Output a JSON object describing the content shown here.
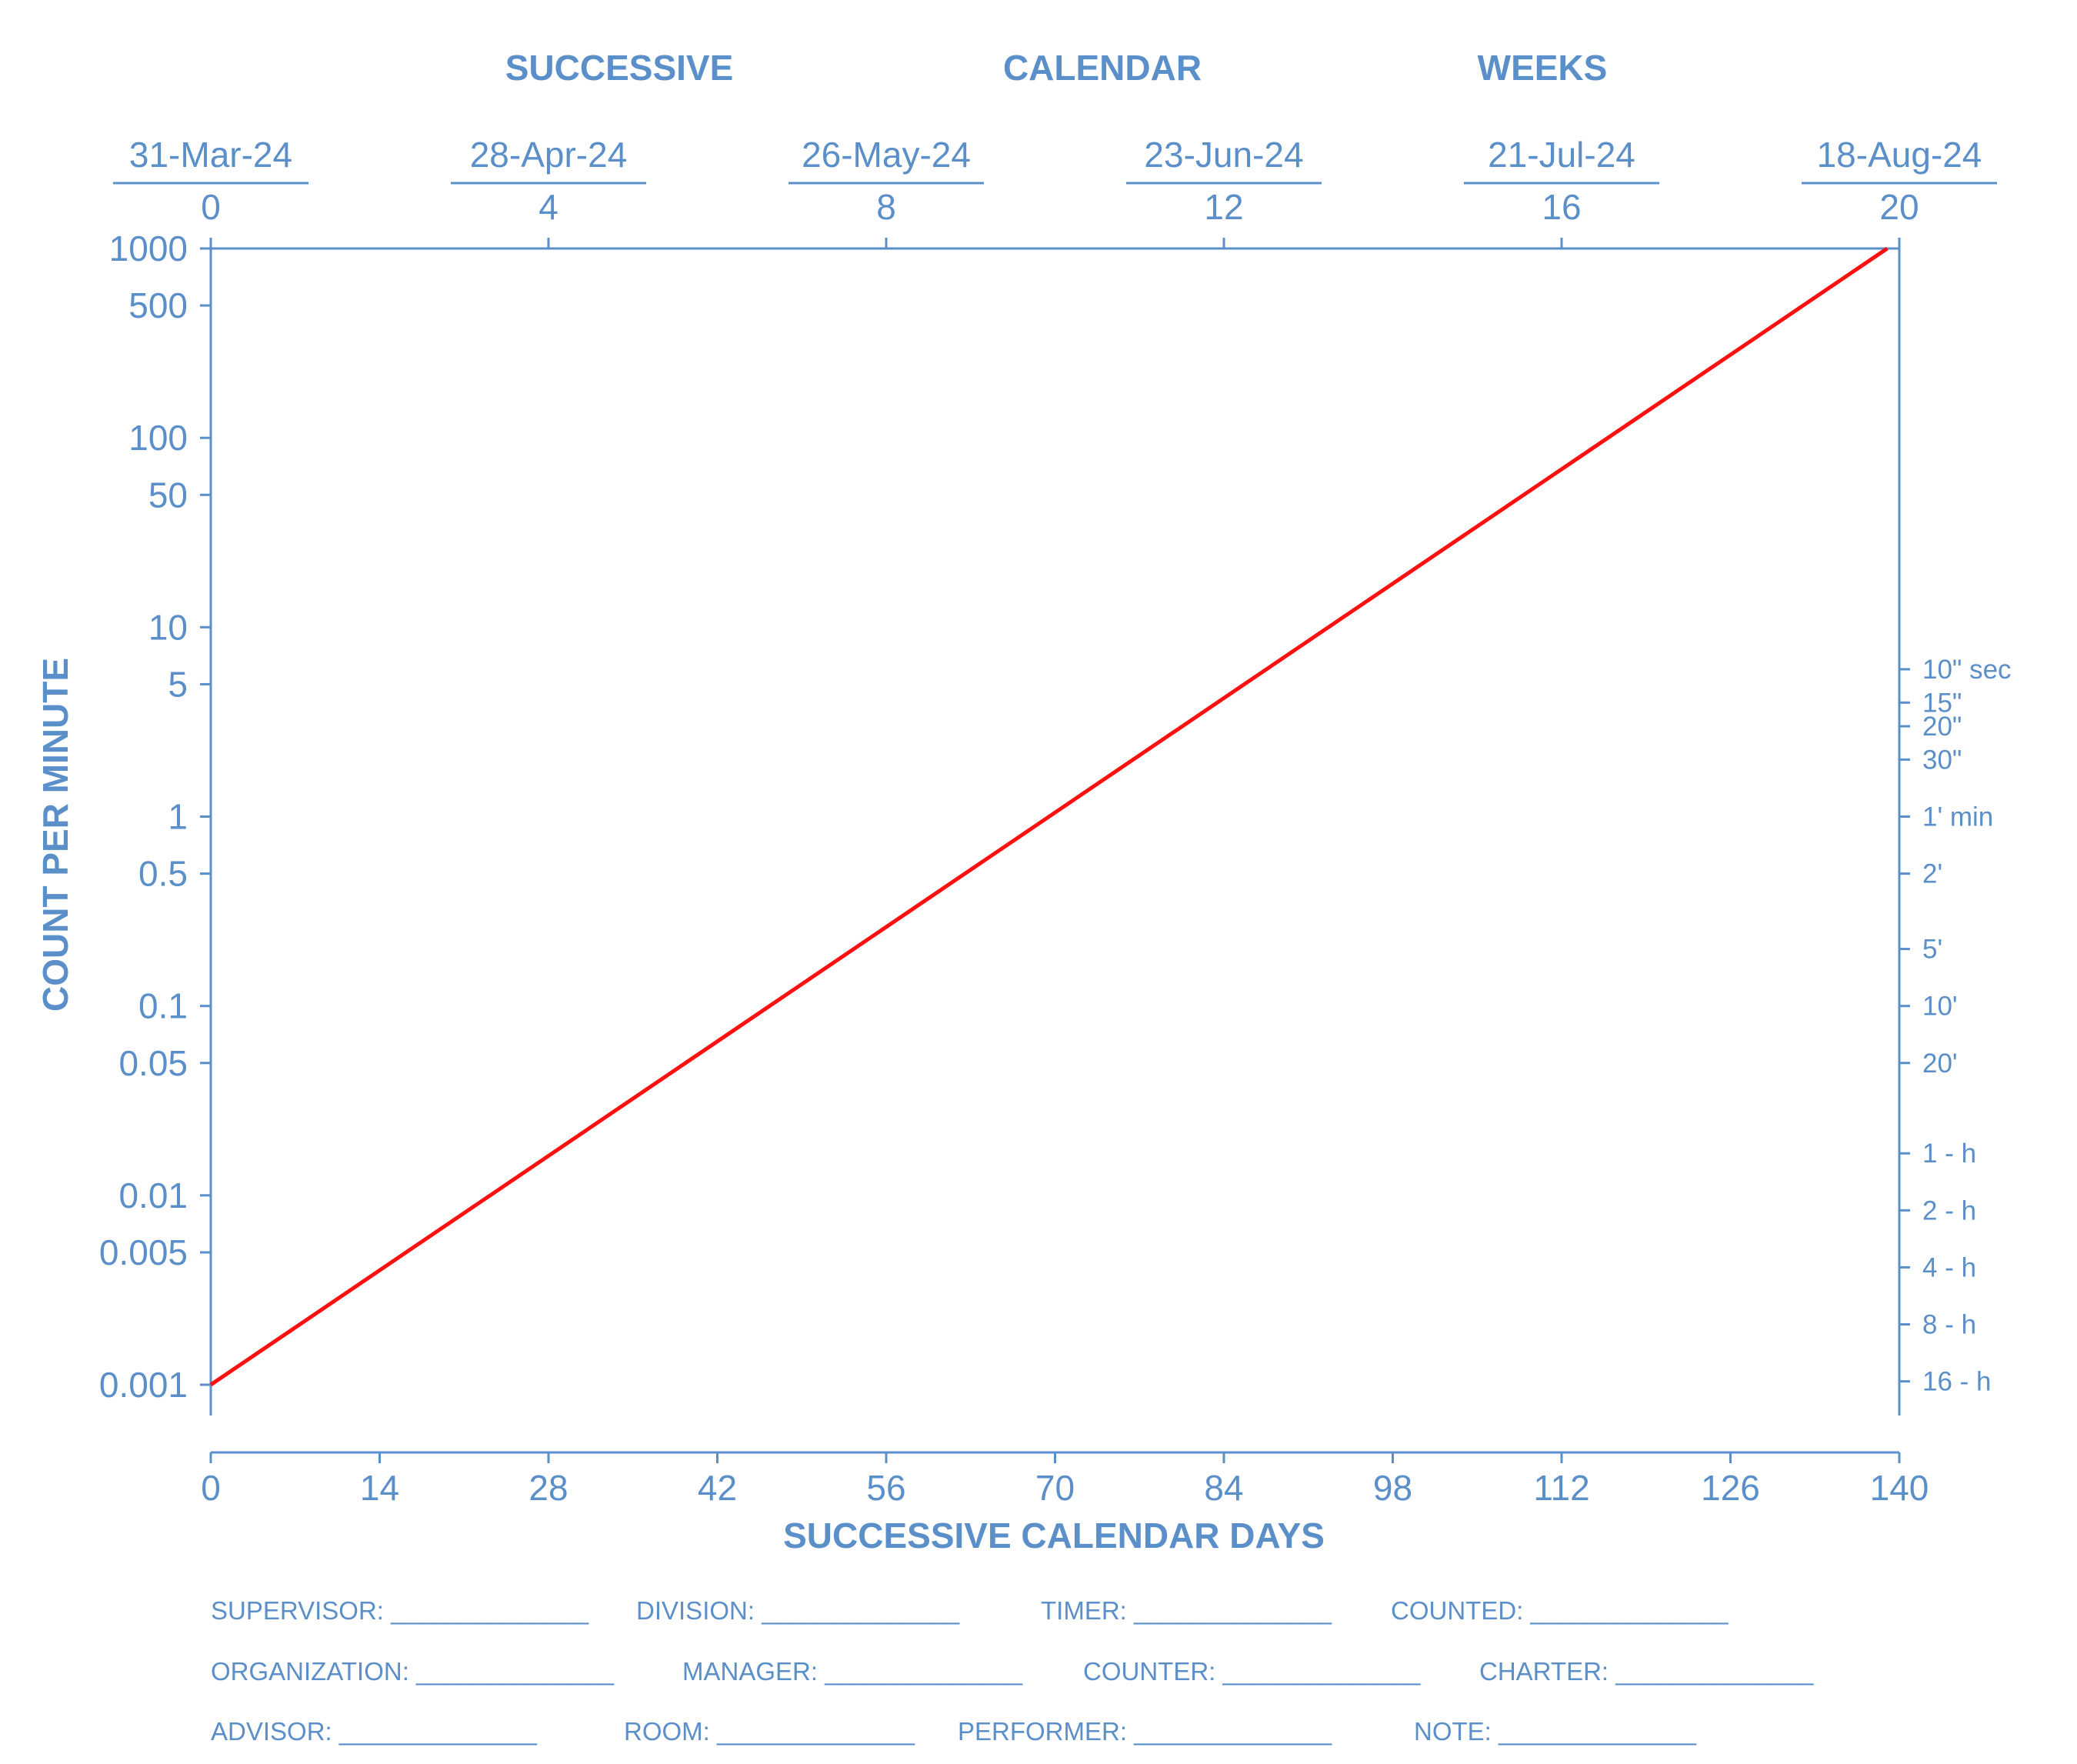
{
  "colors": {
    "axis": "#5b8fc9",
    "series": "#ff1010",
    "background": "#ffffff"
  },
  "top_title": [
    "SUCCESSIVE",
    "CALENDAR",
    "WEEKS"
  ],
  "chart_data": {
    "type": "line",
    "xlabel": "SUCCESSIVE CALENDAR DAYS",
    "ylabel": "COUNT PER MINUTE",
    "x_scale": "linear",
    "y_scale": "log",
    "xlim": [
      0,
      140
    ],
    "ylim": [
      0.001,
      1000
    ],
    "grid": false,
    "x_ticks": [
      "0",
      "14",
      "28",
      "42",
      "56",
      "70",
      "84",
      "98",
      "112",
      "126",
      "140"
    ],
    "y_ticks": [
      {
        "value": 1000,
        "label": "1000"
      },
      {
        "value": 500,
        "label": "500"
      },
      {
        "value": 100,
        "label": "100"
      },
      {
        "value": 50,
        "label": "50"
      },
      {
        "value": 10,
        "label": "10"
      },
      {
        "value": 5,
        "label": "5"
      },
      {
        "value": 1,
        "label": "1"
      },
      {
        "value": 0.5,
        "label": "0.5"
      },
      {
        "value": 0.1,
        "label": "0.1"
      },
      {
        "value": 0.05,
        "label": "0.05"
      },
      {
        "value": 0.01,
        "label": "0.01"
      },
      {
        "value": 0.005,
        "label": "0.005"
      },
      {
        "value": 0.001,
        "label": "0.001"
      }
    ],
    "top_axis": {
      "weeks": [
        "0",
        "4",
        "8",
        "12",
        "16",
        "20"
      ],
      "dates": [
        "31-Mar-24",
        "28-Apr-24",
        "26-May-24",
        "23-Jun-24",
        "21-Jul-24",
        "18-Aug-24"
      ]
    },
    "right_axis": [
      {
        "value": 6,
        "label": "10\" sec"
      },
      {
        "value": 4,
        "label": "15\""
      },
      {
        "value": 3,
        "label": "20\""
      },
      {
        "value": 2,
        "label": "30\""
      },
      {
        "value": 1,
        "label": "1' min"
      },
      {
        "value": 0.5,
        "label": "2'"
      },
      {
        "value": 0.2,
        "label": "5'"
      },
      {
        "value": 0.1,
        "label": "10'"
      },
      {
        "value": 0.05,
        "label": "20'"
      },
      {
        "value": 0.016667,
        "label": "1 - h"
      },
      {
        "value": 0.008333,
        "label": "2 - h"
      },
      {
        "value": 0.004167,
        "label": "4 - h"
      },
      {
        "value": 0.002083,
        "label": "8 - h"
      },
      {
        "value": 0.001042,
        "label": "16 - h"
      }
    ],
    "series": [
      {
        "x": [
          0,
          139
        ],
        "y": [
          0.001,
          1000
        ]
      }
    ]
  },
  "form_fields": [
    [
      "SUPERVISOR: ______________",
      "DIVISION: ______________",
      "TIMER: ______________",
      "COUNTED: ______________"
    ],
    [
      "ORGANIZATION: ______________",
      "MANAGER: ______________",
      "COUNTER: ______________",
      "CHARTER: ______________"
    ],
    [
      "ADVISOR: ______________",
      "ROOM: ______________",
      "PERFORMER: ______________",
      "NOTE: ______________"
    ]
  ]
}
